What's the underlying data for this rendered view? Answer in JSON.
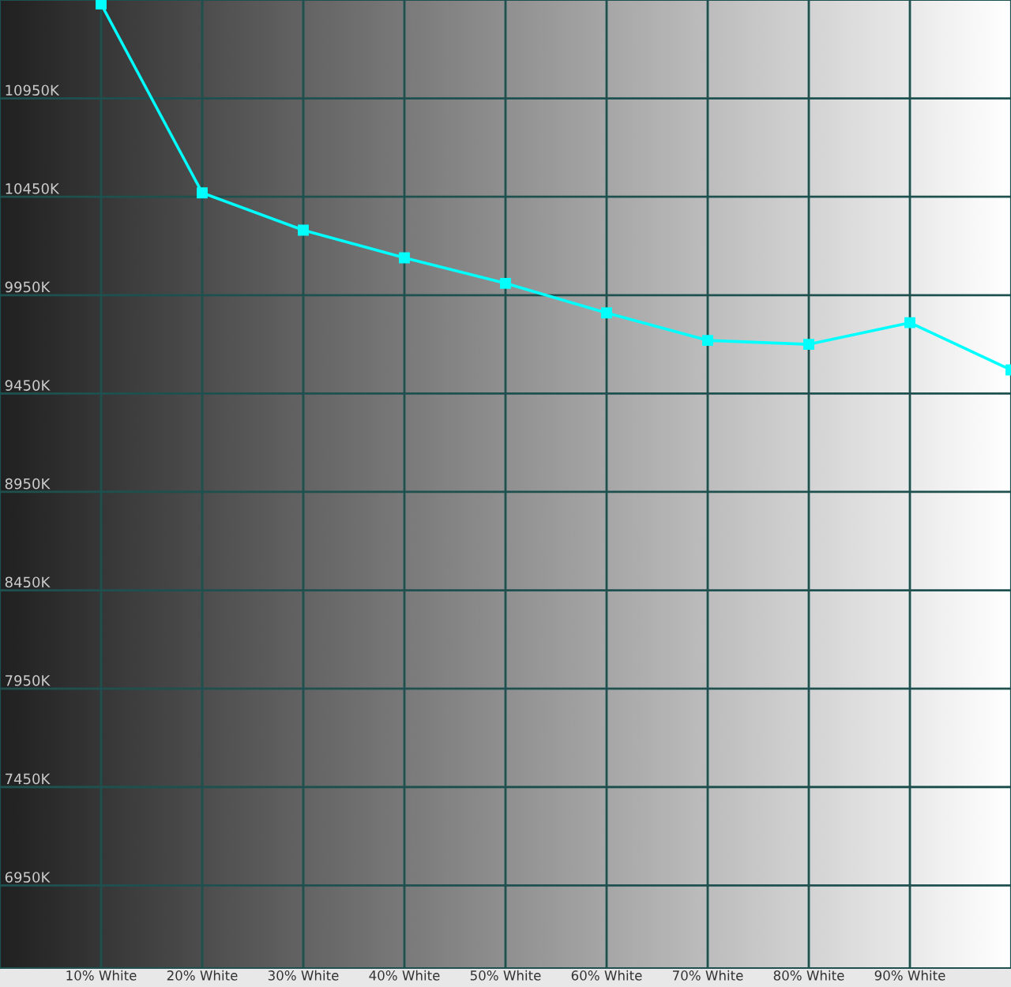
{
  "chart_data": {
    "type": "line",
    "x": [
      10,
      20,
      30,
      40,
      50,
      60,
      70,
      80,
      90,
      100
    ],
    "series": [
      {
        "color": "#00ffff",
        "values": [
          11430,
          10470,
          10280,
          10140,
          10010,
          9860,
          9720,
          9700,
          9810,
          9570
        ]
      }
    ],
    "xlim": [
      0,
      100
    ],
    "xticks": [
      {
        "value": 10,
        "label": "10% White"
      },
      {
        "value": 20,
        "label": "20% White"
      },
      {
        "value": 30,
        "label": "30% White"
      },
      {
        "value": 40,
        "label": "40% White"
      },
      {
        "value": 50,
        "label": "50% White"
      },
      {
        "value": 60,
        "label": "60% White"
      },
      {
        "value": 70,
        "label": "70% White"
      },
      {
        "value": 80,
        "label": "80% White"
      },
      {
        "value": 90,
        "label": "90% White"
      }
    ],
    "ylim": [
      6530,
      11450
    ],
    "yticks": [
      {
        "value": 6950,
        "label": "6950K"
      },
      {
        "value": 7450,
        "label": "7450K"
      },
      {
        "value": 7950,
        "label": "7950K"
      },
      {
        "value": 8450,
        "label": "8450K"
      },
      {
        "value": 8950,
        "label": "8950K"
      },
      {
        "value": 9450,
        "label": "9450K"
      },
      {
        "value": 9950,
        "label": "9950K"
      },
      {
        "value": 10450,
        "label": "10450K"
      },
      {
        "value": 10950,
        "label": "10950K"
      }
    ],
    "grid": true,
    "marker": "square",
    "line_style": "solid"
  }
}
